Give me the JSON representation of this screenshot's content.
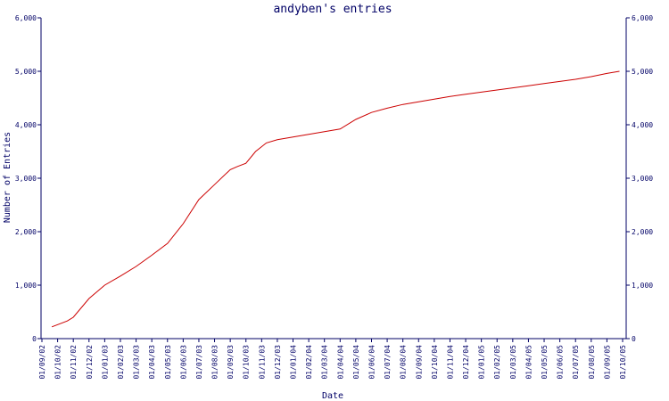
{
  "chart_data": {
    "type": "line",
    "title": "andyben's entries",
    "xlabel": "Date",
    "ylabel": "Number of Entries",
    "ylim": [
      0,
      6000
    ],
    "y_ticks": [
      0,
      1000,
      2000,
      3000,
      4000,
      5000,
      6000
    ],
    "y_tick_labels": [
      "0",
      "1,000",
      "2,000",
      "3,000",
      "4,000",
      "5,000",
      "6,000"
    ],
    "secondary_y_axis": true,
    "grid": false,
    "line_color": "#cc0000",
    "axis_color": "#000066",
    "x_tick_labels": [
      "01/09/02",
      "01/10/02",
      "01/11/02",
      "01/12/02",
      "01/01/03",
      "01/02/03",
      "01/03/03",
      "01/04/03",
      "01/05/03",
      "01/06/03",
      "01/07/03",
      "01/08/03",
      "01/09/03",
      "01/10/03",
      "01/11/03",
      "01/12/03",
      "01/01/04",
      "01/02/04",
      "01/03/04",
      "01/04/04",
      "01/05/04",
      "01/06/04",
      "01/07/04",
      "01/08/04",
      "01/09/04",
      "01/10/04",
      "01/11/04",
      "01/12/04",
      "01/01/05",
      "01/02/05",
      "01/03/05",
      "01/04/05",
      "01/05/05",
      "01/06/05",
      "01/07/05",
      "01/08/05",
      "01/09/05",
      "01/10/05"
    ],
    "series": [
      {
        "x": [
          "2002-09-20",
          "2002-10-20",
          "2002-11-01",
          "2002-12-01",
          "2003-01-01",
          "2003-02-01",
          "2003-03-01",
          "2003-04-01",
          "2003-05-01",
          "2003-06-01",
          "2003-07-01",
          "2003-08-01",
          "2003-09-01",
          "2003-09-15",
          "2003-10-01",
          "2003-10-20",
          "2003-11-10",
          "2003-12-01",
          "2004-01-01",
          "2004-02-01",
          "2004-03-01",
          "2004-04-01",
          "2004-05-01",
          "2004-06-01",
          "2004-07-01",
          "2004-08-01",
          "2004-09-01",
          "2004-10-01",
          "2004-11-01",
          "2004-12-01",
          "2005-01-01",
          "2005-02-01",
          "2005-03-01",
          "2005-04-01",
          "2005-05-01",
          "2005-06-01",
          "2005-07-01",
          "2005-08-01",
          "2005-09-01",
          "2005-09-25"
        ],
        "values": [
          220,
          330,
          400,
          750,
          1000,
          1170,
          1350,
          1560,
          1780,
          2150,
          2600,
          2880,
          3160,
          3220,
          3280,
          3500,
          3660,
          3720,
          3770,
          3820,
          3870,
          3920,
          4100,
          4230,
          4310,
          4380,
          4430,
          4480,
          4530,
          4570,
          4610,
          4650,
          4690,
          4730,
          4770,
          4810,
          4850,
          4900,
          4960,
          5000
        ]
      }
    ]
  }
}
